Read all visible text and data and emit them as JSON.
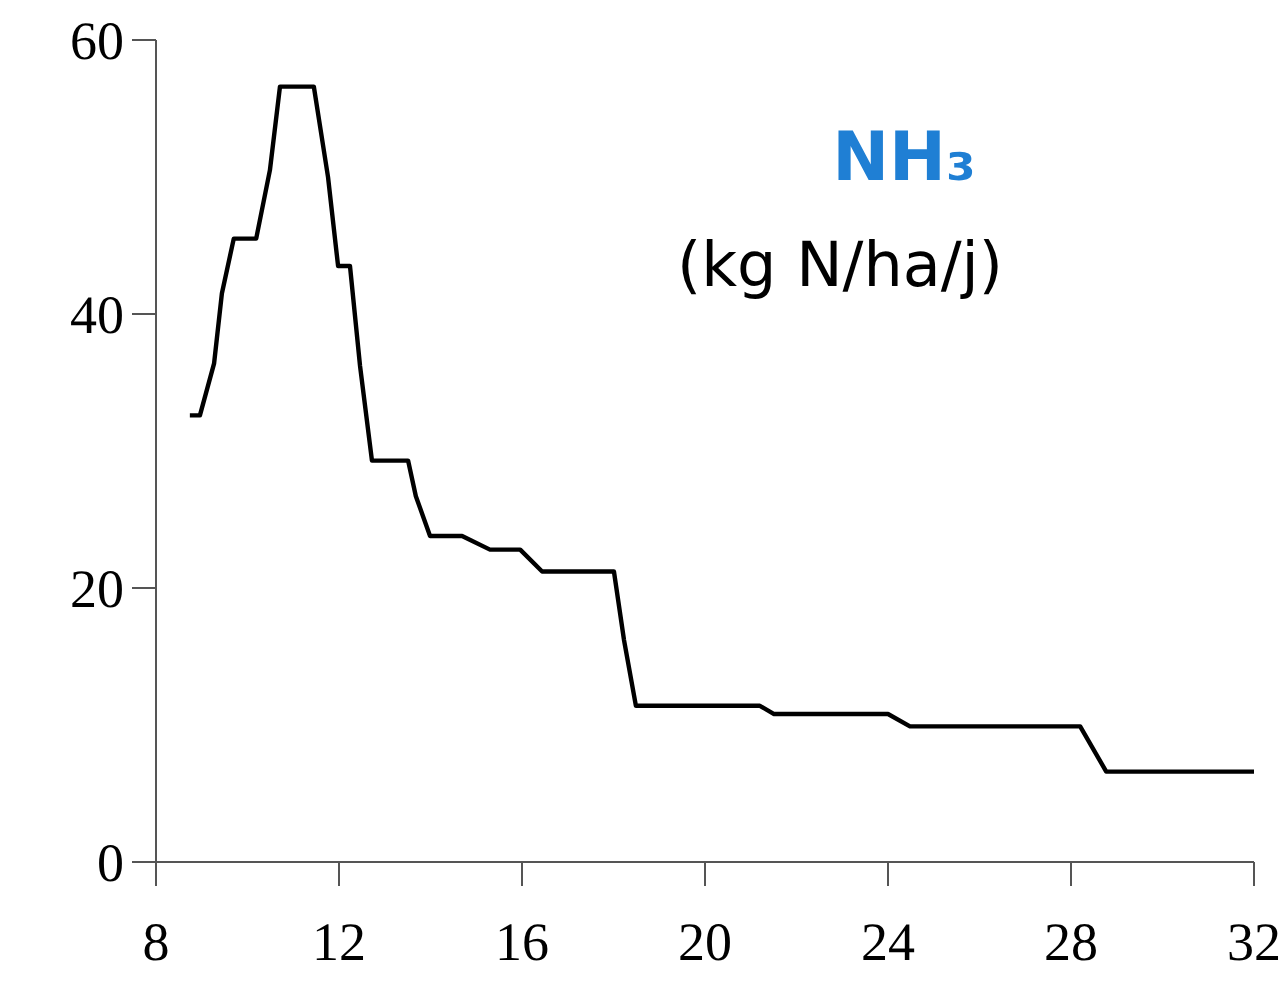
{
  "chart_data": {
    "type": "line",
    "title": "NH₃",
    "subtitle": "(kg N/ha/j)",
    "x": [
      8.74,
      8.96,
      9.27,
      9.44,
      9.7,
      10.19,
      10.49,
      10.71,
      11.45,
      11.76,
      11.98,
      12.24,
      12.46,
      12.72,
      13.51,
      13.68,
      13.99,
      14.69,
      15.3,
      15.96,
      16.44,
      18.01,
      18.23,
      18.49,
      21.2,
      21.51,
      24.0,
      24.48,
      28.2,
      28.77,
      32
    ],
    "series": [
      {
        "color": "#000000",
        "values": [
          32.6,
          32.6,
          36.4,
          41.5,
          45.5,
          45.5,
          50.5,
          56.6,
          56.6,
          50,
          43.5,
          43.5,
          36.2,
          29.3,
          29.3,
          26.7,
          23.8,
          23.8,
          22.8,
          22.8,
          21.2,
          21.2,
          16.2,
          11.4,
          11.4,
          10.8,
          10.8,
          9.9,
          9.9,
          6.6,
          6.6
        ]
      }
    ],
    "xlim": [
      8,
      32
    ],
    "xticks": [
      8,
      12,
      16,
      20,
      24,
      28,
      32
    ],
    "ylim": [
      0,
      60
    ],
    "yticks": [
      0,
      20,
      40,
      60
    ],
    "grid": false,
    "marker": "none",
    "line_style": "solid"
  }
}
